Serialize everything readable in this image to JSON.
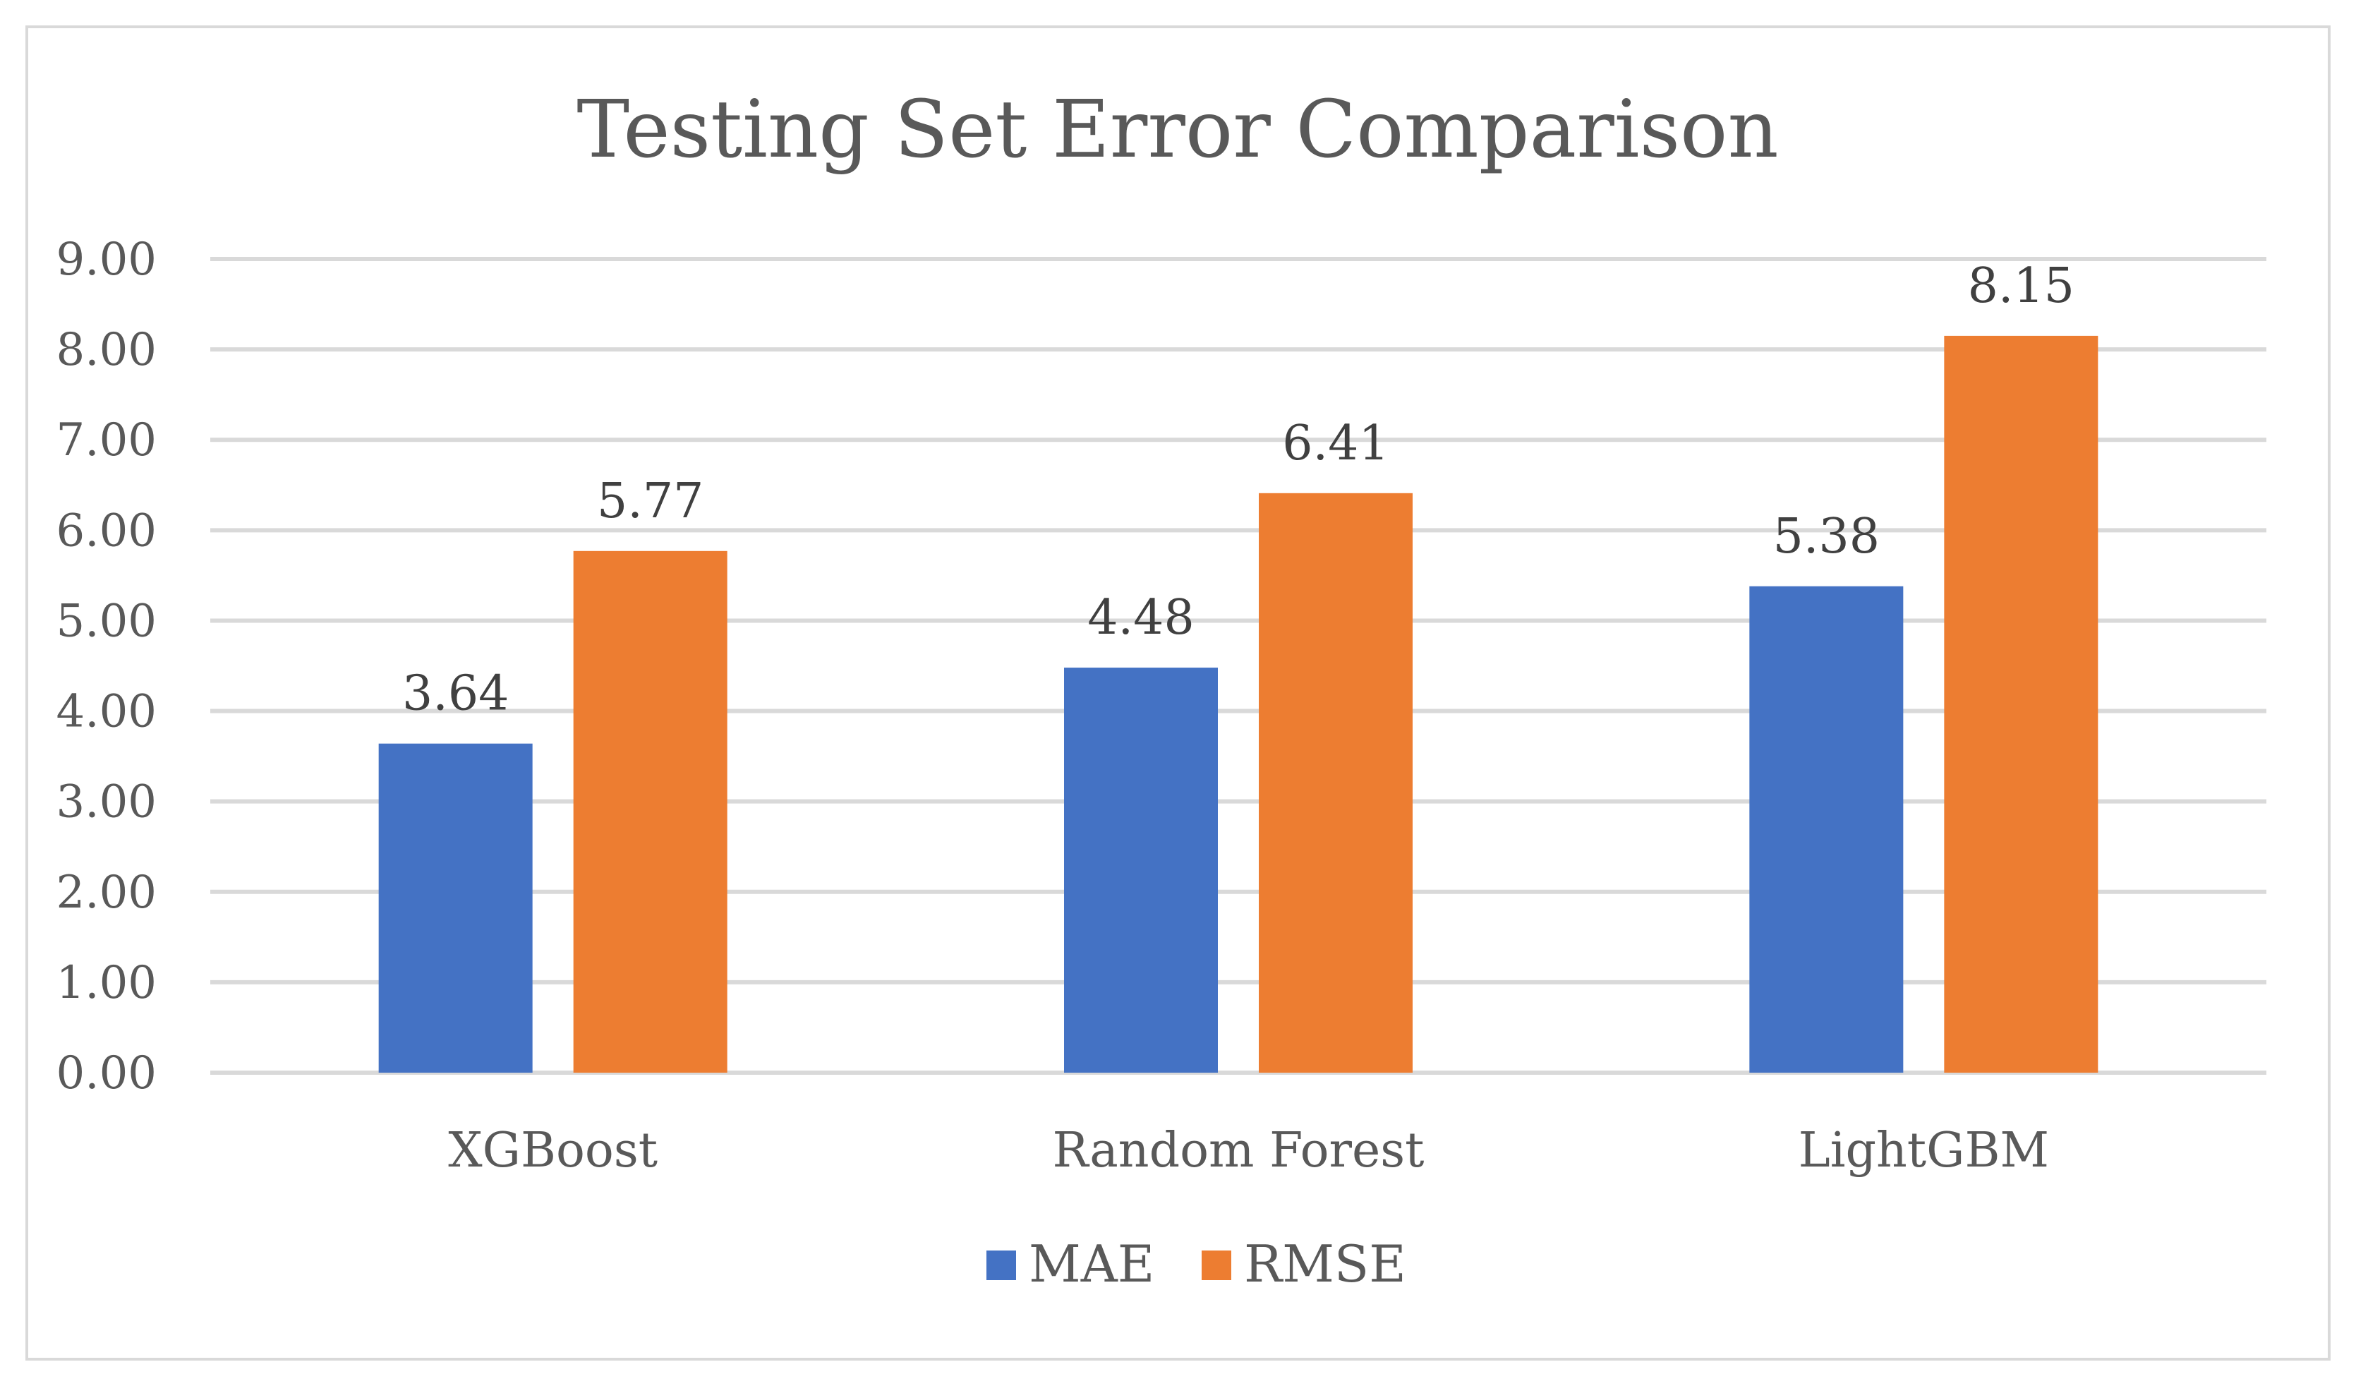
{
  "chart_data": {
    "type": "bar",
    "title": "Testing Set Error Comparison",
    "categories": [
      "XGBoost",
      "Random Forest",
      "LightGBM"
    ],
    "series": [
      {
        "name": "MAE",
        "values": [
          3.64,
          4.48,
          5.38
        ],
        "color": "#4472c4",
        "labels": [
          "3.64",
          "4.48",
          "5.38"
        ]
      },
      {
        "name": "RMSE",
        "values": [
          5.77,
          6.41,
          8.15
        ],
        "color": "#ed7d31",
        "labels": [
          "5.77",
          "6.41",
          "8.15"
        ]
      }
    ],
    "ylim": [
      0,
      9
    ],
    "yticks": [
      0,
      1,
      2,
      3,
      4,
      5,
      6,
      7,
      8,
      9
    ],
    "ytick_labels": [
      "0.00",
      "1.00",
      "2.00",
      "3.00",
      "4.00",
      "5.00",
      "6.00",
      "7.00",
      "8.00",
      "9.00"
    ],
    "grid": true,
    "legend_position": "bottom",
    "gridline_color": "#d9d9d9"
  }
}
